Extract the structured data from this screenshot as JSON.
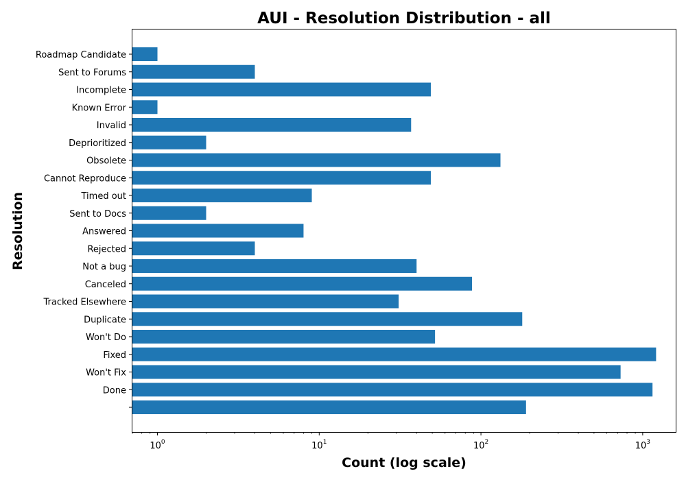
{
  "chart_data": {
    "type": "bar",
    "orientation": "horizontal",
    "title": "AUI - Resolution Distribution - all",
    "xlabel": "Count (log scale)",
    "ylabel": "Resolution",
    "xscale": "log",
    "xlim": [
      0.7,
      1600
    ],
    "x_ticks": [
      {
        "value": 1,
        "base": "10",
        "exp": "0"
      },
      {
        "value": 10,
        "base": "10",
        "exp": "1"
      },
      {
        "value": 100,
        "base": "10",
        "exp": "2"
      },
      {
        "value": 1000,
        "base": "10",
        "exp": "3"
      }
    ],
    "grid": false,
    "bar_color": "#1f77b4",
    "categories": [
      "",
      "Done",
      "Won't Fix",
      "Fixed",
      "Won't Do",
      "Duplicate",
      "Tracked Elsewhere",
      "Canceled",
      "Not a bug",
      "Rejected",
      "Answered",
      "Sent to Docs",
      "Timed out",
      "Cannot Reproduce",
      "Obsolete",
      "Deprioritized",
      "Invalid",
      "Known Error",
      "Incomplete",
      "Sent to Forums",
      "Roadmap Candidate"
    ],
    "values": [
      190,
      1150,
      730,
      1210,
      52,
      180,
      31,
      88,
      40,
      4,
      8,
      2,
      9,
      49,
      132,
      2,
      37,
      1,
      49,
      4,
      1
    ]
  }
}
